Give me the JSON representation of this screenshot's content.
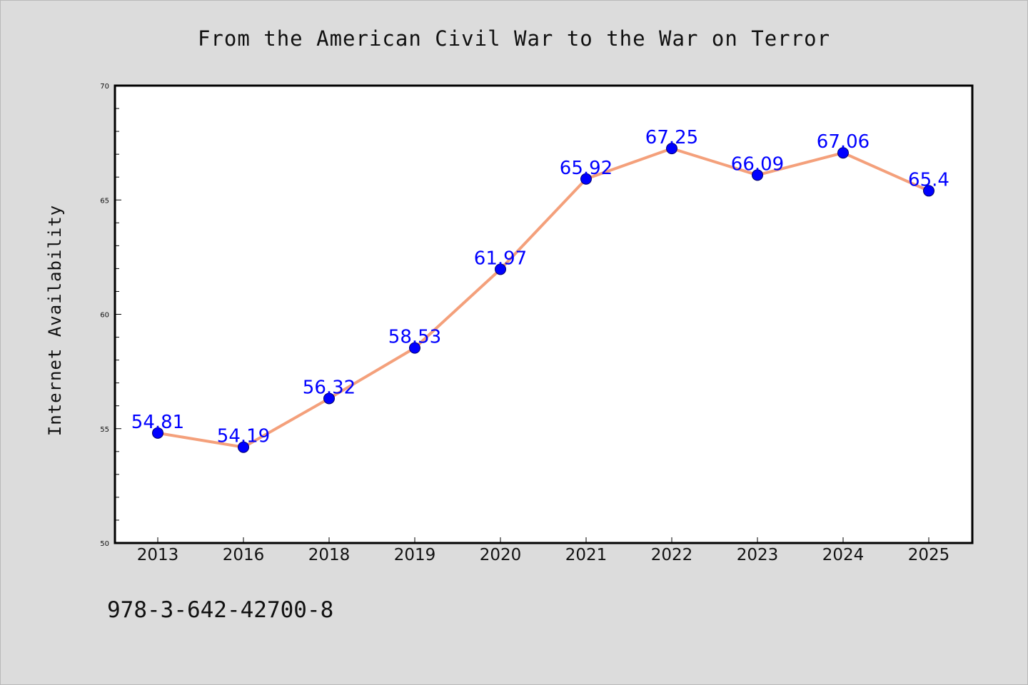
{
  "colors": {
    "background": "#dcdcdc",
    "plot_background": "#ffffff",
    "line": "#f4a07b",
    "marker": "#0000ff",
    "data_label": "#0000ff",
    "axis": "#000000"
  },
  "footer": {
    "code": "978-3-642-42700-8"
  },
  "chart_data": {
    "type": "line",
    "title": "From the American Civil War to the War on Terror",
    "xlabel": "",
    "ylabel": "Internet Availability",
    "categories": [
      "2013",
      "2016",
      "2018",
      "2019",
      "2020",
      "2021",
      "2022",
      "2023",
      "2024",
      "2025"
    ],
    "values": [
      54.81,
      54.19,
      56.32,
      58.53,
      61.97,
      65.92,
      67.25,
      66.09,
      67.06,
      65.4
    ],
    "data_labels": [
      "54.81",
      "54.19",
      "56.32",
      "58.53",
      "61.97",
      "65.92",
      "67.25",
      "66.09",
      "67.06",
      "65.4"
    ],
    "ylim": [
      50,
      70
    ],
    "yticks": [
      50,
      55,
      60,
      65,
      70
    ],
    "y_minor_step": 1,
    "grid": false,
    "legend": "none",
    "marker": "circle"
  }
}
